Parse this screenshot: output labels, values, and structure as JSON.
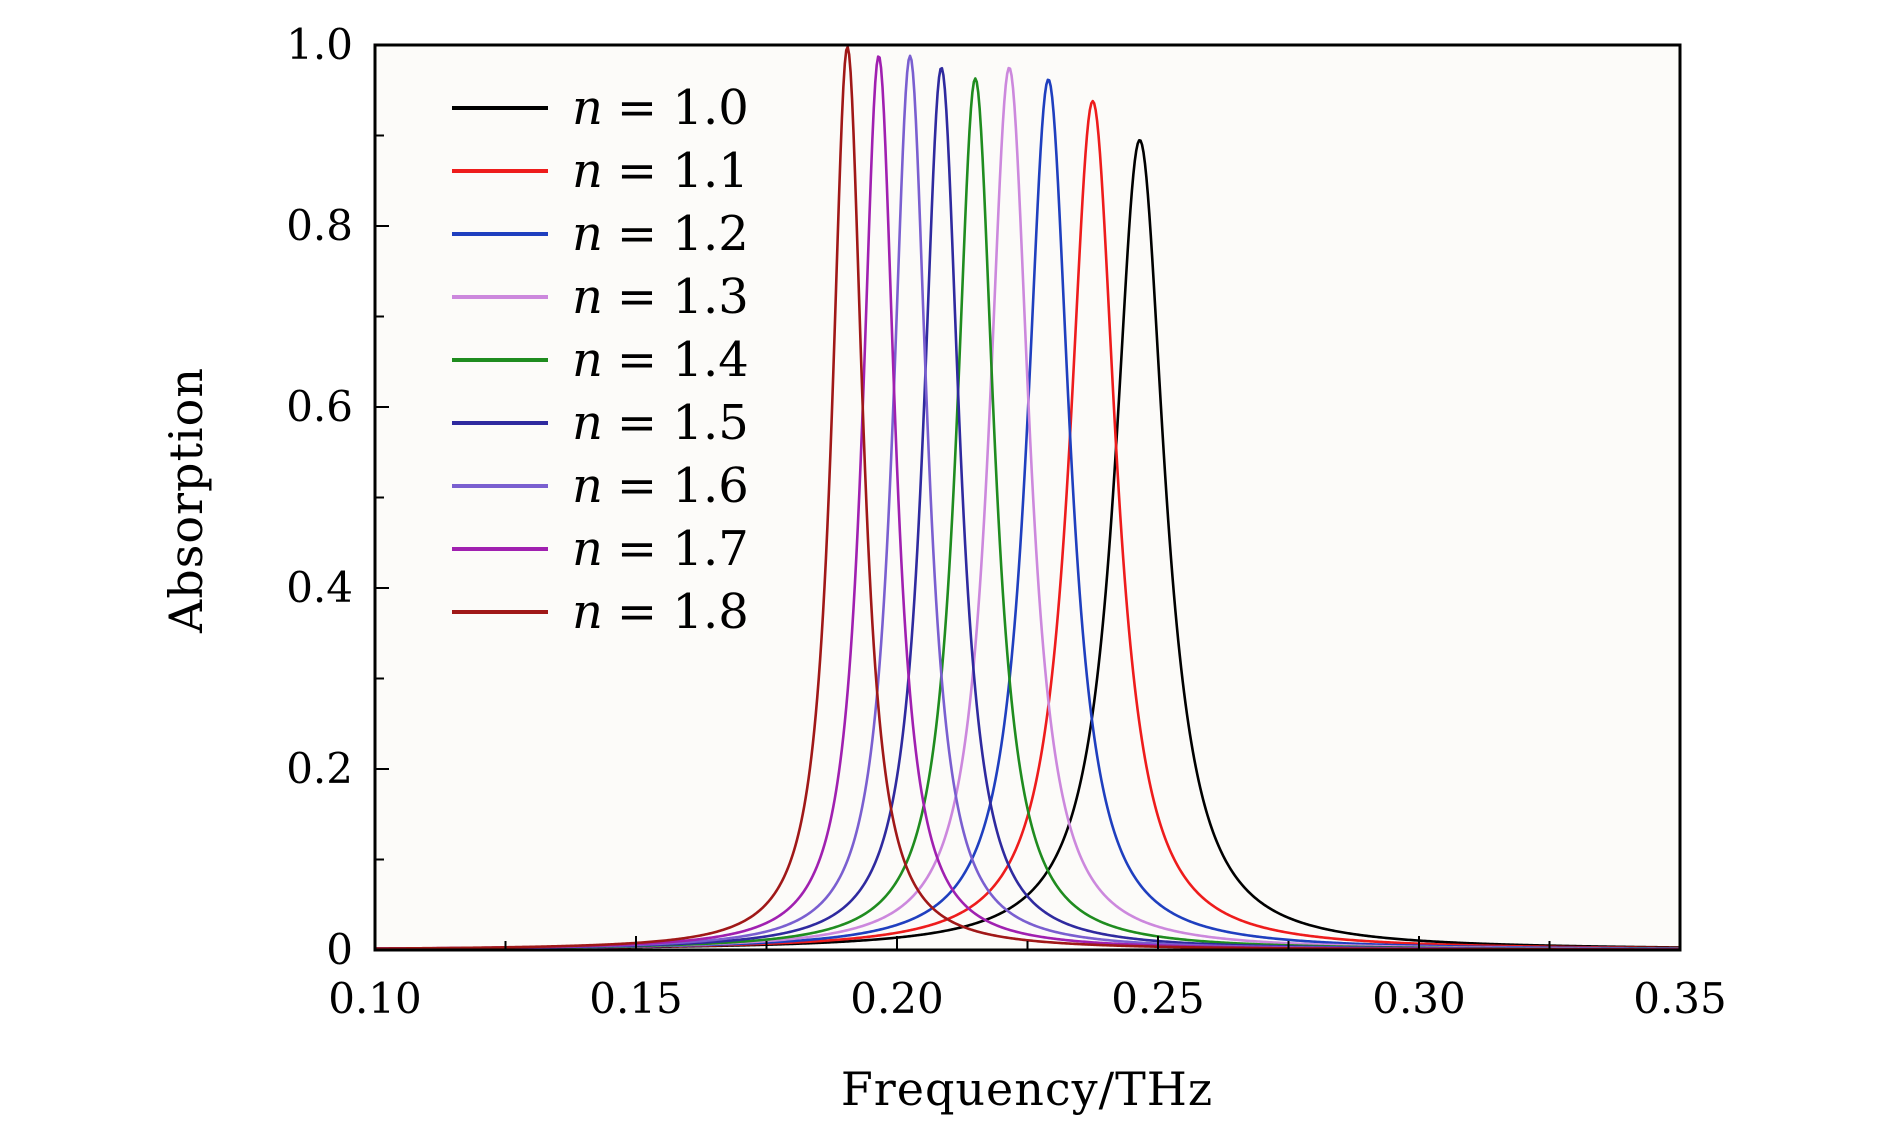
{
  "chart_data": {
    "type": "line",
    "title": "",
    "xlabel": "Frequency/THz",
    "ylabel": "Absorption",
    "xlim": [
      0.1,
      0.35
    ],
    "ylim": [
      0,
      1.0
    ],
    "xticks": [
      0.1,
      0.15,
      0.2,
      0.25,
      0.3,
      0.35
    ],
    "xtick_labels": [
      "0.10",
      "0.15",
      "0.20",
      "0.25",
      "0.30",
      "0.35"
    ],
    "yticks": [
      0,
      0.2,
      0.4,
      0.6,
      0.8,
      1.0
    ],
    "ytick_labels": [
      "0",
      "0.2",
      "0.4",
      "0.6",
      "0.8",
      "1.0"
    ],
    "grid": false,
    "legend_position": "top-left",
    "line_shape": "lorentzian",
    "series": [
      {
        "name": "n = 1.0",
        "legend_var": "n",
        "legend_value": "= 1.0",
        "color": "#000000",
        "peak_freq": 0.2465,
        "peak_abs": 0.895,
        "halfwidth": 0.0058
      },
      {
        "name": "n = 1.1",
        "legend_var": "n",
        "legend_value": "= 1.1",
        "color": "#ee1c1c",
        "peak_freq": 0.2375,
        "peak_abs": 0.938,
        "halfwidth": 0.0054
      },
      {
        "name": "n = 1.2",
        "legend_var": "n",
        "legend_value": "= 1.2",
        "color": "#1f3fbf",
        "peak_freq": 0.229,
        "peak_abs": 0.962,
        "halfwidth": 0.005
      },
      {
        "name": "n = 1.3",
        "legend_var": "n",
        "legend_value": "= 1.3",
        "color": "#cc88dd",
        "peak_freq": 0.2215,
        "peak_abs": 0.975,
        "halfwidth": 0.0047
      },
      {
        "name": "n = 1.4",
        "legend_var": "n",
        "legend_value": "= 1.4",
        "color": "#1f8c1f",
        "peak_freq": 0.215,
        "peak_abs": 0.963,
        "halfwidth": 0.0044
      },
      {
        "name": "n = 1.5",
        "legend_var": "n",
        "legend_value": "= 1.5",
        "color": "#2f2a9f",
        "peak_freq": 0.2085,
        "peak_abs": 0.975,
        "halfwidth": 0.0042
      },
      {
        "name": "n = 1.6",
        "legend_var": "n",
        "legend_value": "= 1.6",
        "color": "#7a5fd0",
        "peak_freq": 0.2025,
        "peak_abs": 0.988,
        "halfwidth": 0.004
      },
      {
        "name": "n = 1.7",
        "legend_var": "n",
        "legend_value": "= 1.7",
        "color": "#a020b0",
        "peak_freq": 0.1965,
        "peak_abs": 0.988,
        "halfwidth": 0.0038
      },
      {
        "name": "n = 1.8",
        "legend_var": "n",
        "legend_value": "= 1.8",
        "color": "#a01818",
        "peak_freq": 0.1905,
        "peak_abs": 0.998,
        "halfwidth": 0.0036
      }
    ]
  }
}
